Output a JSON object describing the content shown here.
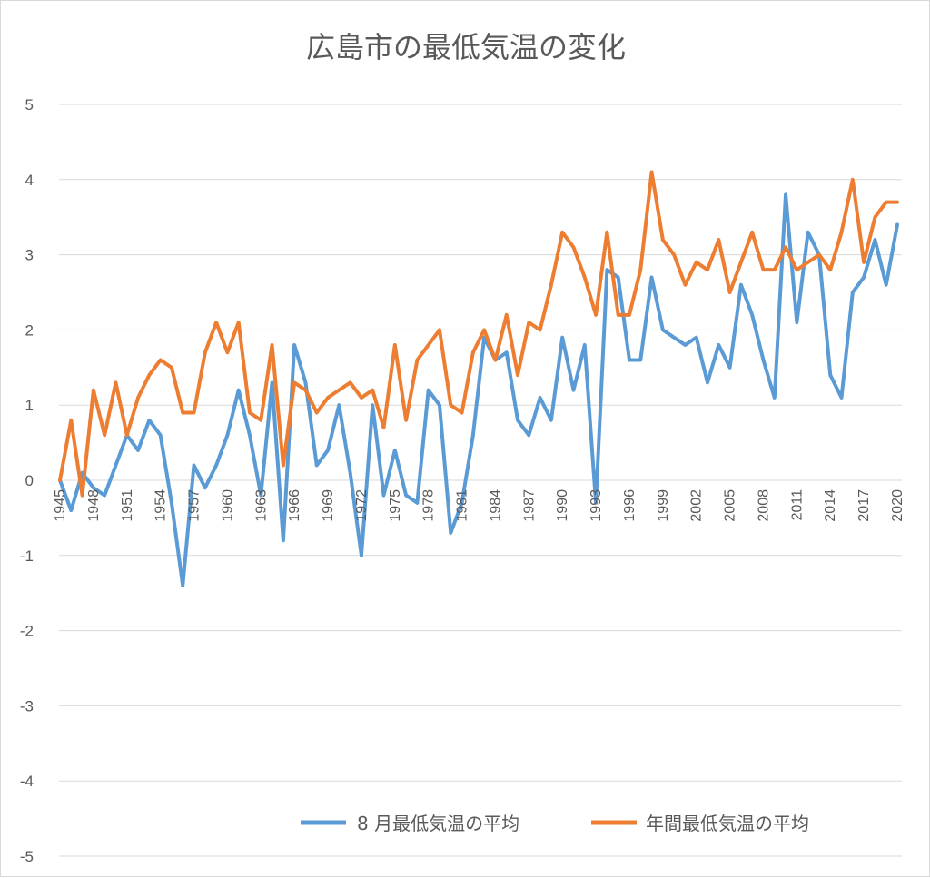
{
  "chart_data": {
    "type": "line",
    "title": "広島市の最低気温の変化",
    "xlabel": "",
    "ylabel": "",
    "ylim": [
      -5,
      5
    ],
    "y_ticks": [
      5,
      4,
      3,
      2,
      1,
      0,
      -1,
      -2,
      -3,
      -4,
      -5
    ],
    "grid": true,
    "legend_position": "bottom",
    "x": [
      1945,
      1946,
      1947,
      1948,
      1949,
      1950,
      1951,
      1952,
      1953,
      1954,
      1955,
      1956,
      1957,
      1958,
      1959,
      1960,
      1961,
      1962,
      1963,
      1964,
      1965,
      1966,
      1967,
      1968,
      1969,
      1970,
      1971,
      1972,
      1973,
      1974,
      1975,
      1976,
      1977,
      1978,
      1979,
      1980,
      1981,
      1982,
      1983,
      1984,
      1985,
      1986,
      1987,
      1988,
      1989,
      1990,
      1991,
      1992,
      1993,
      1994,
      1995,
      1996,
      1997,
      1998,
      1999,
      2000,
      2001,
      2002,
      2003,
      2004,
      2005,
      2006,
      2007,
      2008,
      2009,
      2010,
      2011,
      2012,
      2013,
      2014,
      2015,
      2016,
      2017,
      2018,
      2019,
      2020
    ],
    "x_tick_labels": [
      "1945",
      "1948",
      "1951",
      "1954",
      "1957",
      "1960",
      "1963",
      "1966",
      "1969",
      "1972",
      "1975",
      "1978",
      "1981",
      "1984",
      "1987",
      "1990",
      "1993",
      "1996",
      "1999",
      "2002",
      "2005",
      "2008",
      "2011",
      "2014",
      "2017",
      "2020"
    ],
    "series": [
      {
        "name": "8 月最低気温の平均",
        "color": "#5b9bd5",
        "values": [
          0.0,
          -0.4,
          0.1,
          -0.1,
          -0.2,
          0.2,
          0.6,
          0.4,
          0.8,
          0.6,
          -0.3,
          -1.4,
          0.2,
          -0.1,
          0.2,
          0.6,
          1.2,
          0.6,
          -0.2,
          1.3,
          -0.8,
          1.8,
          1.3,
          0.2,
          0.4,
          1.0,
          0.1,
          -1.0,
          1.0,
          -0.2,
          0.4,
          -0.2,
          -0.3,
          1.2,
          1.0,
          -0.7,
          -0.3,
          0.6,
          1.9,
          1.6,
          1.7,
          0.8,
          0.6,
          1.1,
          0.8,
          1.9,
          1.2,
          1.8,
          -0.3,
          2.8,
          2.7,
          1.6,
          1.6,
          2.7,
          2.0,
          1.9,
          1.8,
          1.9,
          1.3,
          1.8,
          1.5,
          2.6,
          2.2,
          1.6,
          1.1,
          3.8,
          2.1,
          3.3,
          3.0,
          1.4,
          1.1,
          2.5,
          2.7,
          3.2,
          2.6,
          3.4
        ]
      },
      {
        "name": "年間最低気温の平均",
        "color": "#ed7d31",
        "values": [
          0.0,
          0.8,
          -0.2,
          1.2,
          0.6,
          1.3,
          0.6,
          1.1,
          1.4,
          1.6,
          1.5,
          0.9,
          0.9,
          1.7,
          2.1,
          1.7,
          2.1,
          0.9,
          0.8,
          1.8,
          0.2,
          1.3,
          1.2,
          0.9,
          1.1,
          1.2,
          1.3,
          1.1,
          1.2,
          0.7,
          1.8,
          0.8,
          1.6,
          1.8,
          2.0,
          1.0,
          0.9,
          1.7,
          2.0,
          1.6,
          2.2,
          1.4,
          2.1,
          2.0,
          2.6,
          3.3,
          3.1,
          2.7,
          2.2,
          3.3,
          2.2,
          2.2,
          2.8,
          4.1,
          3.2,
          3.0,
          2.6,
          2.9,
          2.8,
          3.2,
          2.5,
          2.9,
          3.3,
          2.8,
          2.8,
          3.1,
          2.8,
          2.9,
          3.0,
          2.8,
          3.3,
          4.0,
          2.9,
          3.5,
          3.7,
          3.7
        ]
      }
    ]
  }
}
